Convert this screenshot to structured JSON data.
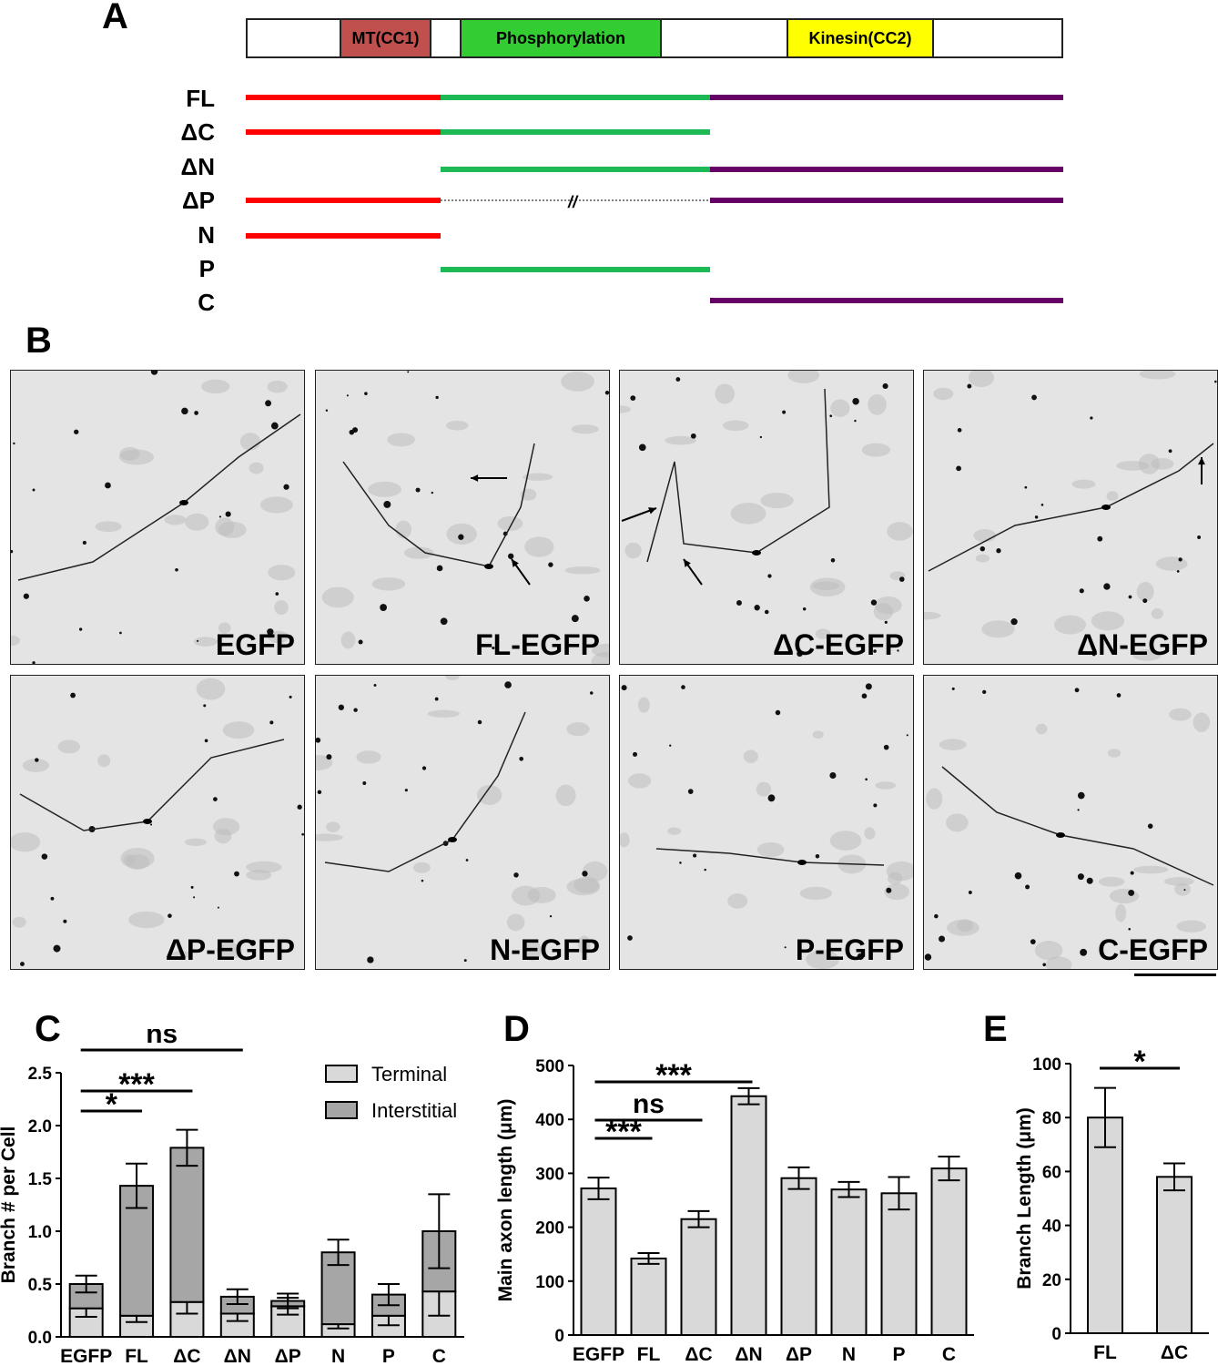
{
  "panels": {
    "a": "A",
    "b": "B",
    "c": "C",
    "d": "D",
    "e": "E"
  },
  "domain_bar": {
    "mt": {
      "label": "MT(CC1)",
      "color": "#c0504d"
    },
    "phos": {
      "label": "Phosphorylation",
      "color": "#33cc33"
    },
    "kinesin": {
      "label": "Kinesin(CC2)",
      "color": "#ffff00"
    }
  },
  "constructs": [
    {
      "label": "FL"
    },
    {
      "label": "ΔC"
    },
    {
      "label": "ΔN"
    },
    {
      "label": "ΔP"
    },
    {
      "label": "N"
    },
    {
      "label": "P"
    },
    {
      "label": "C"
    }
  ],
  "segment_colors": {
    "n": "#ff0000",
    "p": "#1db954",
    "c": "#660066"
  },
  "gap_mark": "//",
  "micrographs": [
    {
      "label": "EGFP",
      "arrows": 0
    },
    {
      "label": "FL-EGFP",
      "arrows": 2
    },
    {
      "label": "ΔC-EGFP",
      "arrows": 2
    },
    {
      "label": "ΔN-EGFP",
      "arrows": 1
    },
    {
      "label": "ΔP-EGFP",
      "arrows": 0
    },
    {
      "label": "N-EGFP",
      "arrows": 0
    },
    {
      "label": "P-EGFP",
      "arrows": 0
    },
    {
      "label": "C-EGFP",
      "arrows": 0
    }
  ],
  "chart_data": [
    {
      "type": "bar",
      "panel": "C",
      "ylabel": "Branch # per Cell",
      "categories": [
        "EGFP",
        "FL",
        "ΔC",
        "ΔN",
        "ΔP",
        "N",
        "P",
        "C"
      ],
      "series": [
        {
          "name": "Terminal",
          "color": "#d9d9d9",
          "values": [
            0.27,
            0.2,
            0.33,
            0.22,
            0.29,
            0.12,
            0.2,
            0.43
          ],
          "errors": [
            0.08,
            0.06,
            0.11,
            0.07,
            0.08,
            0.04,
            0.09,
            0.23
          ]
        },
        {
          "name": "Interstitial",
          "color": "#a6a6a6",
          "values": [
            0.23,
            1.23,
            1.46,
            0.16,
            0.05,
            0.68,
            0.2,
            0.57
          ],
          "errors": [
            0.08,
            0.21,
            0.17,
            0.07,
            0.07,
            0.12,
            0.1,
            0.35
          ]
        }
      ],
      "ylim": [
        0,
        2.5
      ],
      "yticks": [
        "0.0",
        "0.5",
        "1.0",
        "1.5",
        "2.0",
        "2.5"
      ],
      "significance": [
        {
          "from": "EGFP",
          "to": "FL",
          "label": "*"
        },
        {
          "from": "EGFP",
          "to": "ΔC",
          "label": "***"
        },
        {
          "from": "EGFP",
          "to": "ΔN",
          "label": "ns"
        }
      ],
      "legend": "top-right"
    },
    {
      "type": "bar",
      "panel": "D",
      "ylabel": "Main axon length (μm)",
      "categories": [
        "EGFP",
        "FL",
        "ΔC",
        "ΔN",
        "ΔP",
        "N",
        "P",
        "C"
      ],
      "values": [
        272,
        142,
        215,
        443,
        291,
        270,
        263,
        309
      ],
      "errors": [
        20,
        10,
        15,
        15,
        20,
        14,
        30,
        22
      ],
      "ylim": [
        0,
        500
      ],
      "yticks": [
        "0",
        "100",
        "200",
        "300",
        "400",
        "500"
      ],
      "significance": [
        {
          "from": "EGFP",
          "to": "FL",
          "label": "***"
        },
        {
          "from": "EGFP",
          "to": "ΔC",
          "label": "ns"
        },
        {
          "from": "EGFP",
          "to": "ΔN",
          "label": "***"
        }
      ]
    },
    {
      "type": "bar",
      "panel": "E",
      "ylabel": "Branch Length (μm)",
      "categories": [
        "FL",
        "ΔC"
      ],
      "values": [
        80,
        58
      ],
      "errors": [
        11,
        5
      ],
      "ylim": [
        0,
        100
      ],
      "yticks": [
        "0",
        "20",
        "40",
        "60",
        "80",
        "100"
      ],
      "significance": [
        {
          "from": "FL",
          "to": "ΔC",
          "label": "*"
        }
      ]
    }
  ]
}
